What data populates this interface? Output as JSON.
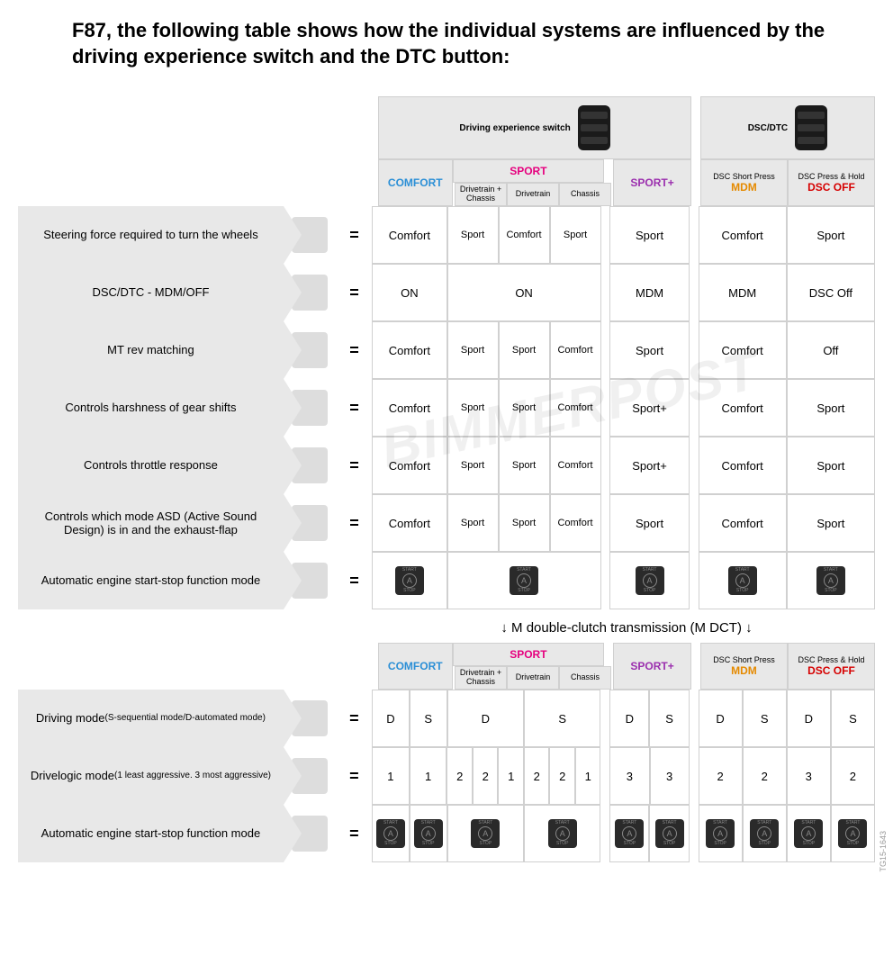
{
  "title": "F87, the following table shows how the individual systems are influenced by the driving experience switch and the DTC button:",
  "top_headers": {
    "driving_exp": "Driving experience switch",
    "dsc_dtc": "DSC/DTC"
  },
  "columns": {
    "comfort": "COMFORT",
    "sport": "SPORT",
    "sport_plus": "SPORT+",
    "dsc_short_top": "DSC Short Press",
    "mdm": "MDM",
    "dsc_hold_top": "DSC Press & Hold",
    "dsc_off": "DSC OFF"
  },
  "sport_sub": {
    "both": "Drivetrain + Chassis",
    "drivetrain": "Drivetrain",
    "chassis": "Chassis"
  },
  "col_widths": {
    "comfort": 85,
    "sport_sub": 58,
    "sport_plus": 90,
    "mdm": 100,
    "dscoff": 100,
    "gap": 10
  },
  "colors": {
    "comfort": "#2b8fd6",
    "sport": "#e6007e",
    "sport_plus": "#9b2fae",
    "mdm": "#e58a00",
    "dsc_off": "#d60000",
    "header_bg": "#e8e8e8",
    "border": "#d0d0d0",
    "cell_bg": "#ffffff"
  },
  "rows_main": [
    {
      "label": "Steering force required to turn the wheels",
      "icon": "steering-column-icon",
      "cells": [
        "Comfort",
        "Sport",
        "Comfort",
        "Sport",
        "Sport",
        "Comfort",
        "Sport"
      ]
    },
    {
      "label": "DSC/DTC - MDM/OFF",
      "icon": "dsc-module-icon",
      "cells": [
        "ON",
        "",
        "ON",
        "",
        "MDM",
        "MDM",
        "DSC Off"
      ],
      "merge_sport": true
    },
    {
      "label": "MT rev matching",
      "icon": "pedal-icon",
      "cells": [
        "Comfort",
        "Sport",
        "Sport",
        "Comfort",
        "Sport",
        "Comfort",
        "Off"
      ]
    },
    {
      "label": "Controls harshness of gear shifts",
      "icon": "ecu-icon",
      "cells": [
        "Comfort",
        "Sport",
        "Sport",
        "Comfort",
        "Sport+",
        "Comfort",
        "Sport"
      ]
    },
    {
      "label": "Controls throttle response",
      "icon": "throttle-pedal-icon",
      "cells": [
        "Comfort",
        "Sport",
        "Sport",
        "Comfort",
        "Sport+",
        "Comfort",
        "Sport"
      ]
    },
    {
      "label": "Controls which mode ASD (Active Sound Design) is in and the exhaust-flap",
      "icon": "car-outline-icon",
      "cells": [
        "Comfort",
        "Sport",
        "Sport",
        "Comfort",
        "Sport",
        "Comfort",
        "Sport"
      ]
    },
    {
      "label": "Automatic engine start-stop function mode",
      "icon": "start-stop-shifter-icon",
      "is_start_stop": true,
      "cells": [
        "A",
        "",
        "A",
        "",
        "A",
        "A",
        "A"
      ],
      "merge_sport": true
    }
  ],
  "dct_section_label": "↓ M double-clutch transmission (M DCT) ↓",
  "rows_dct": [
    {
      "label": "Driving mode",
      "sublabel": "(S-sequential mode/D-automated mode)",
      "icon": "shifter-icon",
      "split": true,
      "cells": [
        "D",
        "S",
        "D",
        "",
        "S",
        "",
        "D",
        "S",
        "D",
        "S",
        "D",
        "S"
      ],
      "merge_col_1_2": true,
      "merge_col_3_4": true
    },
    {
      "label": "Drivelogic mode",
      "sublabel": "(1 least aggressive. 3 most aggressive)",
      "icon": "drivelogic-icon",
      "split": true,
      "cells": [
        "1",
        "1",
        "2",
        "2",
        "1",
        "2",
        "2",
        "1",
        "3",
        "3",
        "2",
        "2",
        "3",
        "2"
      ]
    },
    {
      "label": "Automatic engine start-stop function mode",
      "icon": "start-stop-icon",
      "split": true,
      "is_start_stop": true,
      "cells": [
        "A",
        "A",
        "A",
        "",
        "A",
        "",
        "A",
        "A",
        "A",
        "A",
        "A",
        "A"
      ],
      "merge_col_1_2": true,
      "merge_col_3_4": true
    }
  ],
  "watermark": "BIMMERPOST",
  "reference": "TG15-1643"
}
